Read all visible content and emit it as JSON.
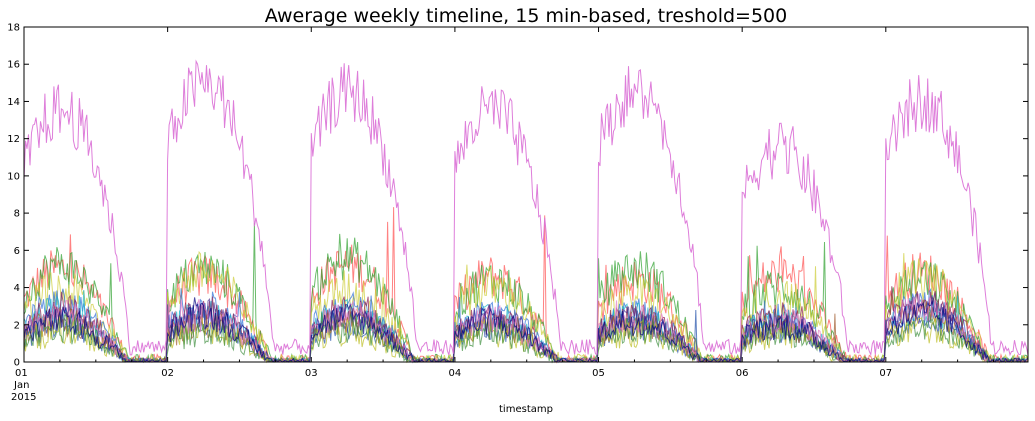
{
  "chart_data": {
    "type": "line",
    "title": "Awerage weekly timeline, 15 min-based, treshold=500",
    "xlabel": "timestamp",
    "ylabel": "",
    "ylim": [
      0,
      18
    ],
    "xlim_days": [
      1,
      7.99
    ],
    "y_ticks": [
      "0",
      "2",
      "4",
      "6",
      "8",
      "10",
      "12",
      "14",
      "16",
      "18"
    ],
    "x_ticks": [
      "01",
      "02",
      "03",
      "04",
      "05",
      "06",
      "07"
    ],
    "x_ticks_sub": [
      "Jan",
      "2015"
    ],
    "grid": false,
    "legend": "none",
    "samples_per_day": 96,
    "series": [
      {
        "color": "#da70d6",
        "level": "high",
        "daily_peaks": [
          13.5,
          15.0,
          14.5,
          13.5,
          14.5,
          11.5,
          14.0
        ],
        "daily_spikes": [
          17.0,
          17.8,
          15.7,
          15.7,
          15.6,
          12.2,
          15.1
        ],
        "night_min": 0.8
      },
      {
        "color": "#ff4d4d",
        "level": "medium",
        "daily_peaks": [
          5.0,
          4.6,
          5.2,
          4.6,
          4.4,
          4.7,
          4.8
        ],
        "daily_spikes": [
          8.0,
          6.2,
          8.6,
          8.8,
          6.5,
          6.3,
          8.0
        ],
        "night_min": 0.1
      },
      {
        "color": "#2ca02c",
        "level": "medium",
        "daily_peaks": [
          5.2,
          5.0,
          5.6,
          4.4,
          5.0,
          4.0,
          4.4
        ],
        "daily_spikes": [
          6.6,
          7.6,
          7.5,
          6.0,
          6.6,
          6.6,
          6.0
        ],
        "night_min": 0.1
      },
      {
        "color": "#cccc33",
        "level": "medium",
        "daily_peaks": [
          3.8,
          4.8,
          3.8,
          4.0,
          3.6,
          3.4,
          4.4
        ],
        "daily_spikes": [
          5.2,
          6.1,
          5.4,
          5.6,
          5.0,
          5.2,
          6.0
        ],
        "night_min": 0.1
      },
      {
        "color": "#2b6cd6",
        "level": "low",
        "daily_peaks": [
          3.2,
          3.0,
          3.0,
          2.6,
          2.6,
          2.4,
          3.2
        ],
        "daily_spikes": [
          4.6,
          4.2,
          4.0,
          3.6,
          3.6,
          3.4,
          4.8
        ],
        "night_min": 0.0
      },
      {
        "color": "#17b3c9",
        "level": "low",
        "daily_peaks": [
          2.8,
          2.6,
          2.6,
          2.3,
          2.4,
          2.2,
          2.8
        ],
        "daily_spikes": [
          4.0,
          3.8,
          3.6,
          3.4,
          3.4,
          3.2,
          4.2
        ],
        "night_min": 0.0
      },
      {
        "color": "#8b1a4a",
        "level": "low",
        "daily_peaks": [
          3.0,
          2.8,
          2.8,
          2.4,
          2.6,
          2.4,
          3.4
        ],
        "daily_spikes": [
          4.2,
          4.0,
          3.9,
          3.6,
          3.6,
          3.4,
          4.6
        ],
        "night_min": 0.0
      },
      {
        "color": "#4b2c8f",
        "level": "low",
        "daily_peaks": [
          2.4,
          2.6,
          2.4,
          2.4,
          2.2,
          2.0,
          2.8
        ],
        "daily_spikes": [
          3.6,
          3.8,
          3.4,
          3.4,
          3.2,
          3.0,
          4.0
        ],
        "night_min": 0.0
      },
      {
        "color": "#1f4fa8",
        "level": "low",
        "daily_peaks": [
          2.0,
          2.2,
          2.0,
          1.9,
          2.0,
          1.8,
          2.4
        ],
        "daily_spikes": [
          3.0,
          3.2,
          3.0,
          2.8,
          2.8,
          2.6,
          3.4
        ],
        "night_min": 0.0
      },
      {
        "color": "#a05a2c",
        "level": "low",
        "daily_peaks": [
          2.2,
          2.0,
          2.2,
          2.0,
          2.0,
          1.8,
          2.6
        ],
        "daily_spikes": [
          3.4,
          3.2,
          3.4,
          3.0,
          3.0,
          2.8,
          3.6
        ],
        "night_min": 0.0
      },
      {
        "color": "#bcbd22",
        "level": "low",
        "daily_peaks": [
          1.6,
          1.8,
          1.6,
          1.6,
          1.6,
          1.4,
          1.8
        ],
        "daily_spikes": [
          2.6,
          2.8,
          2.4,
          2.4,
          2.4,
          2.2,
          2.8
        ],
        "night_min": 0.0
      },
      {
        "color": "#3f8f3f",
        "level": "low",
        "daily_peaks": [
          1.8,
          1.6,
          1.8,
          1.6,
          1.8,
          1.6,
          2.0
        ],
        "daily_spikes": [
          2.8,
          2.6,
          2.8,
          2.6,
          2.6,
          2.4,
          3.0
        ],
        "night_min": 0.0
      },
      {
        "color": "#e377c2",
        "level": "low",
        "daily_peaks": [
          2.6,
          2.4,
          2.6,
          2.2,
          2.4,
          2.2,
          3.0
        ],
        "daily_spikes": [
          3.8,
          3.6,
          3.6,
          3.2,
          3.4,
          3.0,
          4.2
        ],
        "night_min": 0.0
      },
      {
        "color": "#000080",
        "level": "low",
        "daily_peaks": [
          2.2,
          2.4,
          2.4,
          2.2,
          2.2,
          2.0,
          2.6
        ],
        "daily_spikes": [
          3.4,
          3.6,
          3.4,
          3.2,
          3.2,
          3.0,
          3.8
        ],
        "night_min": 0.0
      }
    ]
  }
}
